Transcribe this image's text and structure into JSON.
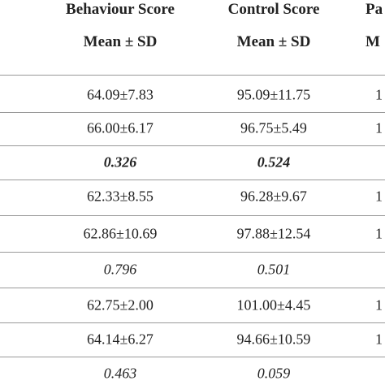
{
  "table": {
    "header": [
      [
        "Behaviour Score",
        "Mean ± SD"
      ],
      [
        "Control Score",
        "Mean ± SD"
      ],
      [
        "Pa",
        "M"
      ]
    ],
    "rows": [
      [
        "64.09±7.83",
        "95.09±11.75",
        "1"
      ],
      [
        "66.00±6.17",
        "96.75±5.49",
        "1"
      ],
      [
        "0.326",
        "0.524"
      ],
      [
        "62.33±8.55",
        "96.28±9.67",
        "1"
      ],
      [
        "62.86±10.69",
        "97.88±12.54",
        "1"
      ],
      [
        "0.796",
        "0.501"
      ],
      [
        "62.75±2.00",
        "101.00±4.45",
        "1"
      ],
      [
        "64.14±6.27",
        "94.66±10.59",
        "1"
      ],
      [
        "0.463",
        "0.059"
      ]
    ]
  }
}
